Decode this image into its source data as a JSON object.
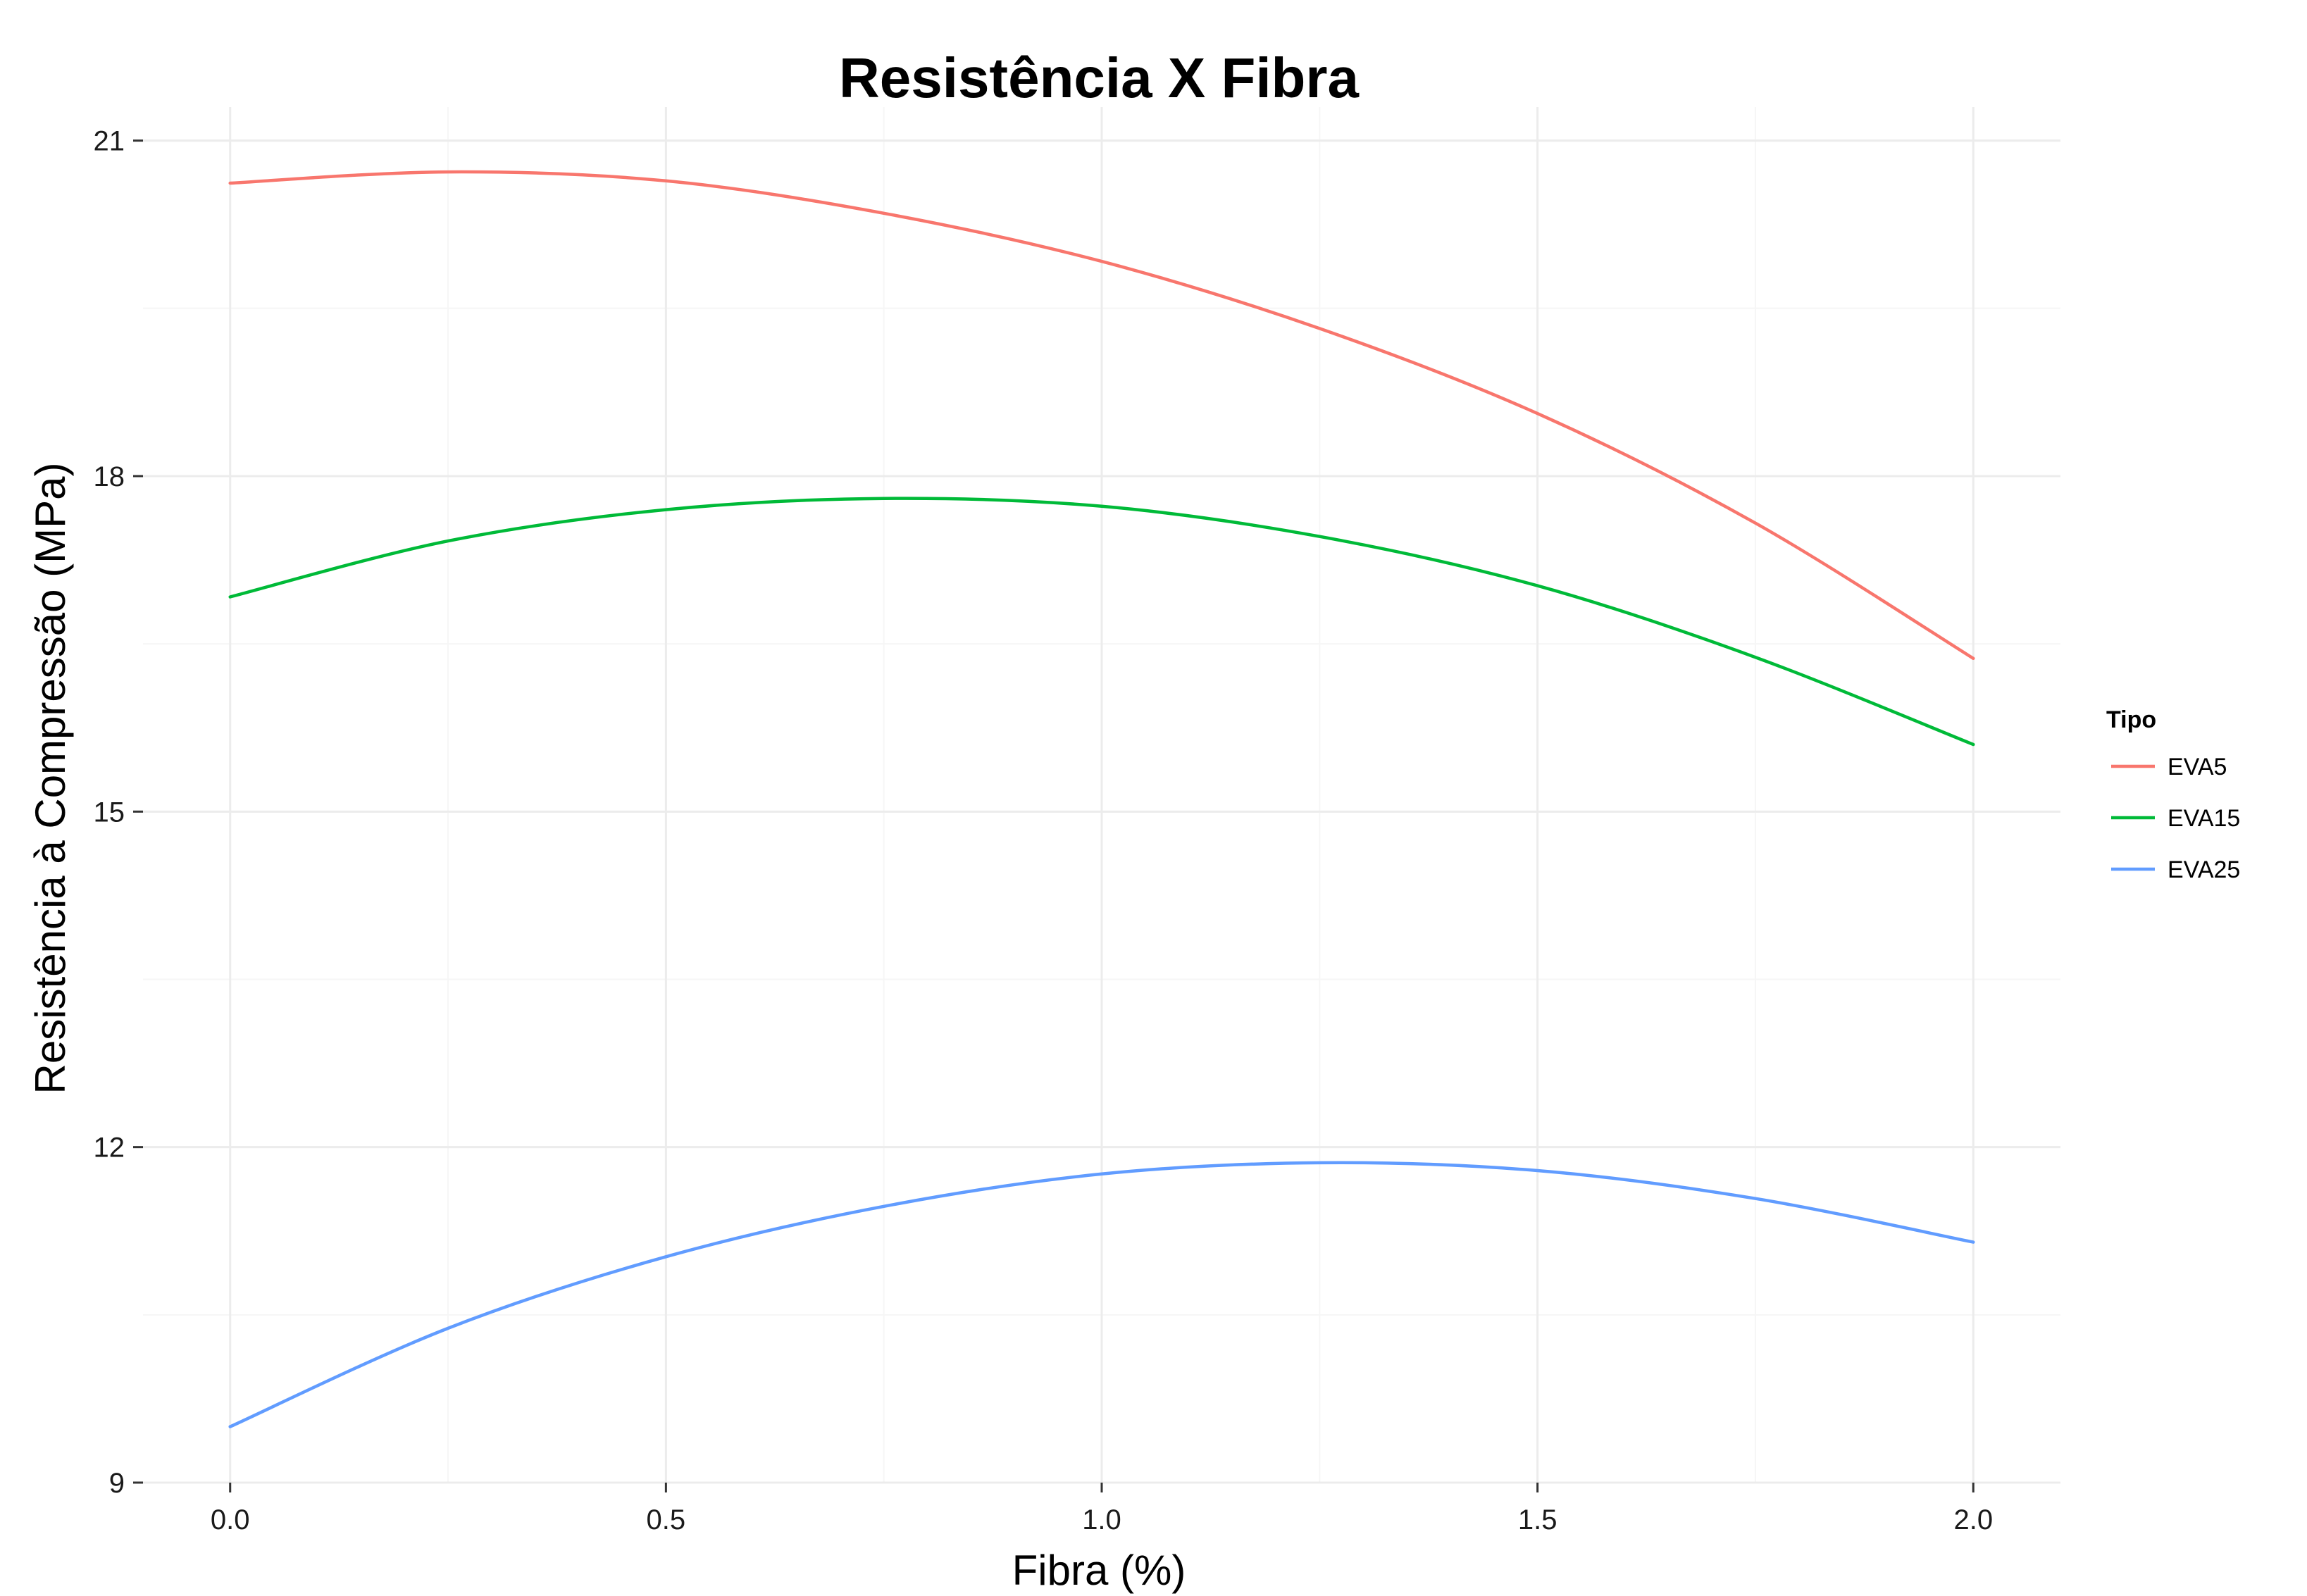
{
  "chart_data": {
    "type": "line",
    "title": "Resistência X Fibra",
    "xlabel": "Fibra (%)",
    "ylabel": "Resistência à Compressão (MPa)",
    "xlim": [
      -0.1,
      2.1
    ],
    "ylim": [
      9,
      21.3
    ],
    "x_ticks": [
      0.0,
      0.5,
      1.0,
      1.5,
      2.0
    ],
    "x_tick_labels": [
      "0.0",
      "0.5",
      "1.0",
      "1.5",
      "2.0"
    ],
    "x_minor_ticks": [
      0.25,
      0.75,
      1.25,
      1.75
    ],
    "y_ticks": [
      9,
      12,
      15,
      18,
      21
    ],
    "y_tick_labels": [
      "9",
      "12",
      "15",
      "18",
      "21"
    ],
    "y_minor_ticks": [
      10.5,
      13.5,
      16.5,
      19.5
    ],
    "grid": true,
    "legend": {
      "title": "Tipo",
      "placement": "right"
    },
    "x": [
      0.0,
      0.25,
      0.5,
      0.75,
      1.0,
      1.25,
      1.5,
      1.75,
      2.0
    ],
    "series": [
      {
        "name": "EVA5",
        "color": "#f8766d",
        "values": [
          20.62,
          20.72,
          20.64,
          20.35,
          19.92,
          19.32,
          18.56,
          17.58,
          16.37
        ]
      },
      {
        "name": "EVA15",
        "color": "#00ba38",
        "values": [
          16.92,
          17.42,
          17.7,
          17.8,
          17.73,
          17.46,
          17.02,
          16.38,
          15.6
        ]
      },
      {
        "name": "EVA25",
        "color": "#619cff",
        "values": [
          9.5,
          10.38,
          11.02,
          11.47,
          11.76,
          11.86,
          11.79,
          11.54,
          11.15
        ]
      }
    ]
  }
}
